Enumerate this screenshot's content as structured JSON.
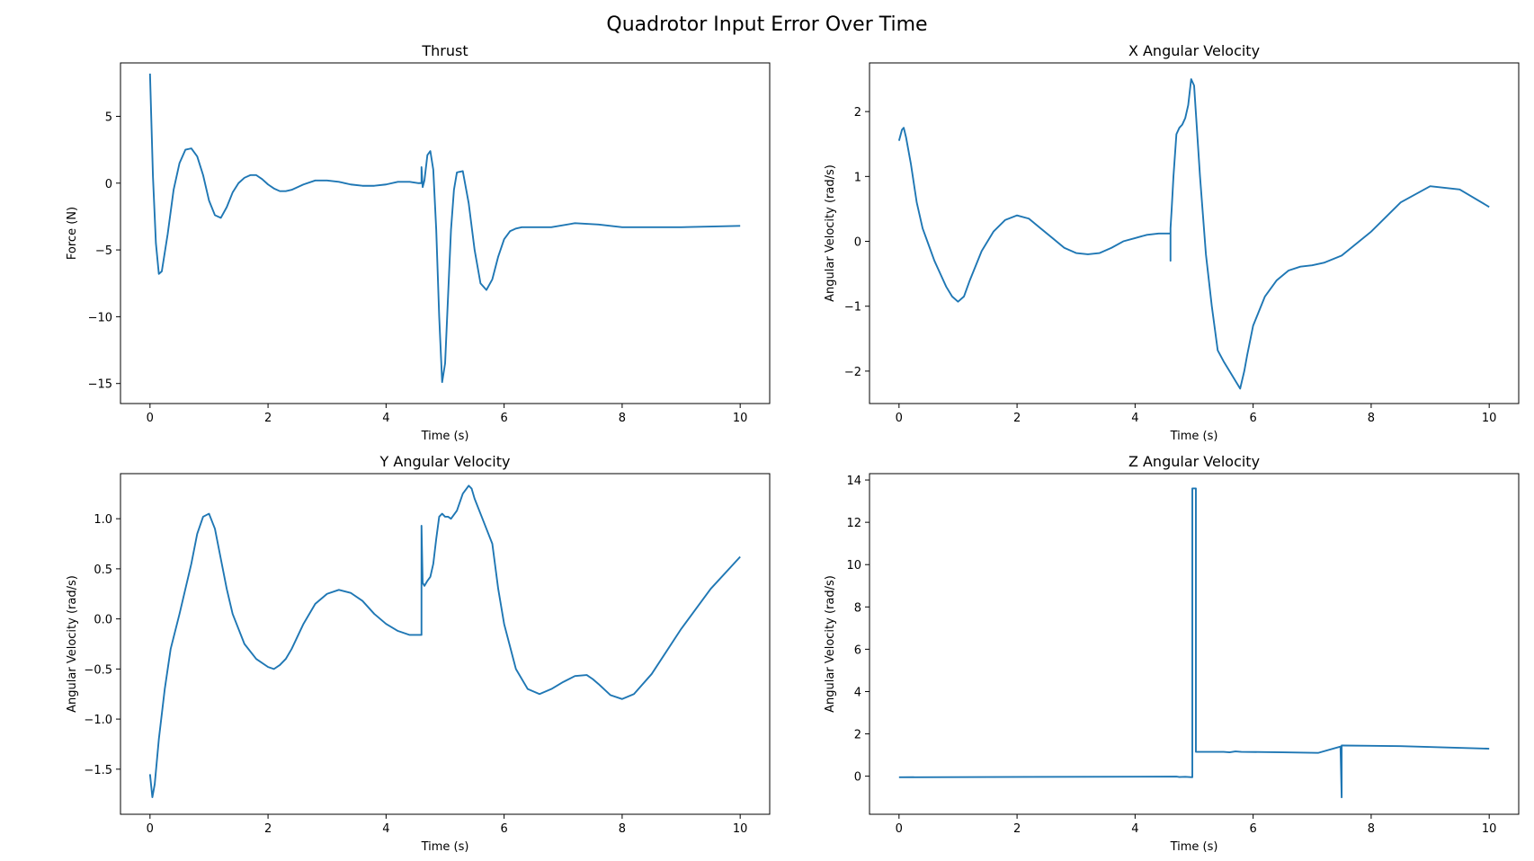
{
  "figure": {
    "suptitle": "Quadrotor Input Error Over Time"
  },
  "colors": {
    "line": "#1f77b4",
    "axes": "#000000",
    "background": "#ffffff"
  },
  "chart_data": [
    {
      "type": "line",
      "title": "Thrust",
      "xlabel": "Time (s)",
      "ylabel": "Force (N)",
      "xlim": [
        -0.5,
        10.5
      ],
      "ylim": [
        -16.5,
        9.0
      ],
      "xticks": [
        0,
        2,
        4,
        6,
        8,
        10
      ],
      "xtick_labels": [
        "0",
        "2",
        "4",
        "6",
        "8",
        "10"
      ],
      "yticks": [
        5,
        0,
        -5,
        -10,
        -15
      ],
      "ytick_labels": [
        "5",
        "0",
        "−5",
        "−10",
        "−15"
      ],
      "grid": false,
      "series": [
        {
          "x": [
            0,
            0.05,
            0.1,
            0.15,
            0.2,
            0.3,
            0.4,
            0.5,
            0.6,
            0.7,
            0.8,
            0.9,
            1.0,
            1.1,
            1.2,
            1.3,
            1.4,
            1.5,
            1.6,
            1.7,
            1.8,
            1.9,
            2.0,
            2.1,
            2.2,
            2.3,
            2.4,
            2.5,
            2.6,
            2.8,
            3.0,
            3.2,
            3.4,
            3.6,
            3.8,
            4.0,
            4.2,
            4.4,
            4.55,
            4.6,
            4.6,
            4.62,
            4.65,
            4.7,
            4.75,
            4.8,
            4.85,
            4.9,
            4.95,
            5.0,
            5.05,
            5.1,
            5.15,
            5.2,
            5.3,
            5.4,
            5.5,
            5.6,
            5.7,
            5.8,
            5.9,
            6.0,
            6.1,
            6.2,
            6.3,
            6.5,
            6.8,
            7.2,
            7.6,
            8.0,
            8.5,
            9.0,
            9.5,
            10.0
          ],
          "y": [
            8.2,
            0.5,
            -4.5,
            -6.8,
            -6.6,
            -3.8,
            -0.5,
            1.5,
            2.5,
            2.6,
            2.0,
            0.6,
            -1.3,
            -2.4,
            -2.6,
            -1.8,
            -0.7,
            0.0,
            0.4,
            0.6,
            0.6,
            0.3,
            -0.1,
            -0.4,
            -0.6,
            -0.6,
            -0.5,
            -0.3,
            -0.1,
            0.2,
            0.2,
            0.1,
            -0.1,
            -0.2,
            -0.2,
            -0.1,
            0.1,
            0.1,
            0.0,
            0.0,
            1.2,
            -0.3,
            0.2,
            2.1,
            2.4,
            1.0,
            -3.5,
            -10.0,
            -14.9,
            -13.5,
            -8.5,
            -3.5,
            -0.5,
            0.8,
            0.9,
            -1.5,
            -5.0,
            -7.5,
            -8.0,
            -7.2,
            -5.5,
            -4.2,
            -3.6,
            -3.4,
            -3.3,
            -3.3,
            -3.3,
            -3.0,
            -3.1,
            -3.3,
            -3.3,
            -3.3,
            -3.25,
            -3.2
          ]
        }
      ]
    },
    {
      "type": "line",
      "title": "X Angular Velocity",
      "xlabel": "Time (s)",
      "ylabel": "Angular Velocity (rad/s)",
      "xlim": [
        -0.5,
        10.5
      ],
      "ylim": [
        -2.5,
        2.75
      ],
      "xticks": [
        0,
        2,
        4,
        6,
        8,
        10
      ],
      "xtick_labels": [
        "0",
        "2",
        "4",
        "6",
        "8",
        "10"
      ],
      "yticks": [
        2,
        1,
        0,
        -1,
        -2
      ],
      "ytick_labels": [
        "2",
        "1",
        "0",
        "−1",
        "−2"
      ],
      "grid": false,
      "series": [
        {
          "x": [
            0,
            0.05,
            0.08,
            0.12,
            0.2,
            0.3,
            0.4,
            0.5,
            0.6,
            0.7,
            0.8,
            0.9,
            1.0,
            1.1,
            1.2,
            1.4,
            1.6,
            1.8,
            2.0,
            2.2,
            2.4,
            2.6,
            2.8,
            3.0,
            3.2,
            3.4,
            3.6,
            3.8,
            4.0,
            4.2,
            4.4,
            4.6,
            4.6,
            4.6,
            4.62,
            4.65,
            4.7,
            4.75,
            4.8,
            4.85,
            4.9,
            4.95,
            5.0,
            5.1,
            5.2,
            5.3,
            5.4,
            5.5,
            5.6,
            5.7,
            5.78,
            5.85,
            5.9,
            6.0,
            6.2,
            6.4,
            6.6,
            6.8,
            7.0,
            7.2,
            7.5,
            8.0,
            8.5,
            9.0,
            9.5,
            10.0
          ],
          "y": [
            1.55,
            1.72,
            1.75,
            1.6,
            1.2,
            0.6,
            0.2,
            -0.05,
            -0.3,
            -0.5,
            -0.7,
            -0.85,
            -0.93,
            -0.85,
            -0.6,
            -0.15,
            0.15,
            0.33,
            0.4,
            0.35,
            0.2,
            0.05,
            -0.1,
            -0.18,
            -0.2,
            -0.18,
            -0.1,
            0.0,
            0.05,
            0.1,
            0.12,
            0.12,
            -0.3,
            0.2,
            0.5,
            1.0,
            1.65,
            1.75,
            1.8,
            1.9,
            2.1,
            2.5,
            2.4,
            1.0,
            -0.2,
            -1.0,
            -1.68,
            -1.85,
            -2.0,
            -2.15,
            -2.27,
            -2.0,
            -1.75,
            -1.3,
            -0.85,
            -0.6,
            -0.45,
            -0.39,
            -0.37,
            -0.33,
            -0.22,
            0.15,
            0.6,
            0.85,
            0.8,
            0.53
          ]
        }
      ]
    },
    {
      "type": "line",
      "title": "Y Angular Velocity",
      "xlabel": "Time (s)",
      "ylabel": "Angular Velocity (rad/s)",
      "xlim": [
        -0.5,
        10.5
      ],
      "ylim": [
        -1.95,
        1.45
      ],
      "xticks": [
        0,
        2,
        4,
        6,
        8,
        10
      ],
      "xtick_labels": [
        "0",
        "2",
        "4",
        "6",
        "8",
        "10"
      ],
      "yticks": [
        1.0,
        0.5,
        0.0,
        -0.5,
        -1.0,
        -1.5
      ],
      "ytick_labels": [
        "1.0",
        "0.5",
        "0.0",
        "−0.5",
        "−1.0",
        "−1.5"
      ],
      "grid": false,
      "series": [
        {
          "x": [
            0,
            0.04,
            0.08,
            0.15,
            0.25,
            0.35,
            0.5,
            0.6,
            0.7,
            0.8,
            0.9,
            1.0,
            1.1,
            1.2,
            1.3,
            1.4,
            1.6,
            1.8,
            2.0,
            2.1,
            2.2,
            2.3,
            2.4,
            2.6,
            2.8,
            3.0,
            3.2,
            3.4,
            3.6,
            3.8,
            4.0,
            4.2,
            4.4,
            4.6,
            4.6,
            4.62,
            4.65,
            4.7,
            4.75,
            4.8,
            4.85,
            4.9,
            4.95,
            5.0,
            5.05,
            5.1,
            5.2,
            5.3,
            5.4,
            5.45,
            5.5,
            5.6,
            5.7,
            5.8,
            5.9,
            6.0,
            6.2,
            6.4,
            6.6,
            6.8,
            7.0,
            7.2,
            7.4,
            7.5,
            7.6,
            7.8,
            8.0,
            8.2,
            8.5,
            9.0,
            9.5,
            10.0
          ],
          "y": [
            -1.55,
            -1.78,
            -1.65,
            -1.2,
            -0.7,
            -0.3,
            0.05,
            0.3,
            0.55,
            0.85,
            1.02,
            1.05,
            0.9,
            0.6,
            0.3,
            0.05,
            -0.25,
            -0.4,
            -0.48,
            -0.5,
            -0.46,
            -0.4,
            -0.3,
            -0.05,
            0.15,
            0.25,
            0.29,
            0.26,
            0.18,
            0.05,
            -0.05,
            -0.12,
            -0.16,
            -0.16,
            0.93,
            0.36,
            0.33,
            0.38,
            0.42,
            0.55,
            0.8,
            1.02,
            1.05,
            1.02,
            1.02,
            1.0,
            1.08,
            1.25,
            1.33,
            1.3,
            1.2,
            1.05,
            0.9,
            0.75,
            0.3,
            -0.05,
            -0.5,
            -0.7,
            -0.75,
            -0.7,
            -0.63,
            -0.57,
            -0.56,
            -0.6,
            -0.65,
            -0.76,
            -0.8,
            -0.75,
            -0.55,
            -0.1,
            0.3,
            0.62
          ]
        }
      ]
    },
    {
      "type": "line",
      "title": "Z Angular Velocity",
      "xlabel": "Time (s)",
      "ylabel": "Angular Velocity (rad/s)",
      "xlim": [
        -0.5,
        10.5
      ],
      "ylim": [
        -1.8,
        14.3
      ],
      "xticks": [
        0,
        2,
        4,
        6,
        8,
        10
      ],
      "xtick_labels": [
        "0",
        "2",
        "4",
        "6",
        "8",
        "10"
      ],
      "yticks": [
        14,
        12,
        10,
        8,
        6,
        4,
        2,
        0
      ],
      "ytick_labels": [
        "14",
        "12",
        "10",
        "8",
        "6",
        "4",
        "2",
        "0"
      ],
      "grid": false,
      "series": [
        {
          "x": [
            0,
            4.7,
            4.75,
            4.85,
            4.97,
            4.97,
            5.03,
            5.03,
            5.05,
            5.5,
            5.6,
            5.7,
            5.8,
            6.5,
            7.1,
            7.48,
            7.5,
            7.5,
            7.52,
            8.5,
            10.0
          ],
          "y": [
            -0.05,
            -0.02,
            -0.04,
            -0.03,
            -0.05,
            13.6,
            13.6,
            1.15,
            1.15,
            1.15,
            1.13,
            1.17,
            1.15,
            1.13,
            1.1,
            1.4,
            -1.0,
            1.45,
            1.45,
            1.42,
            1.3
          ]
        }
      ]
    }
  ]
}
